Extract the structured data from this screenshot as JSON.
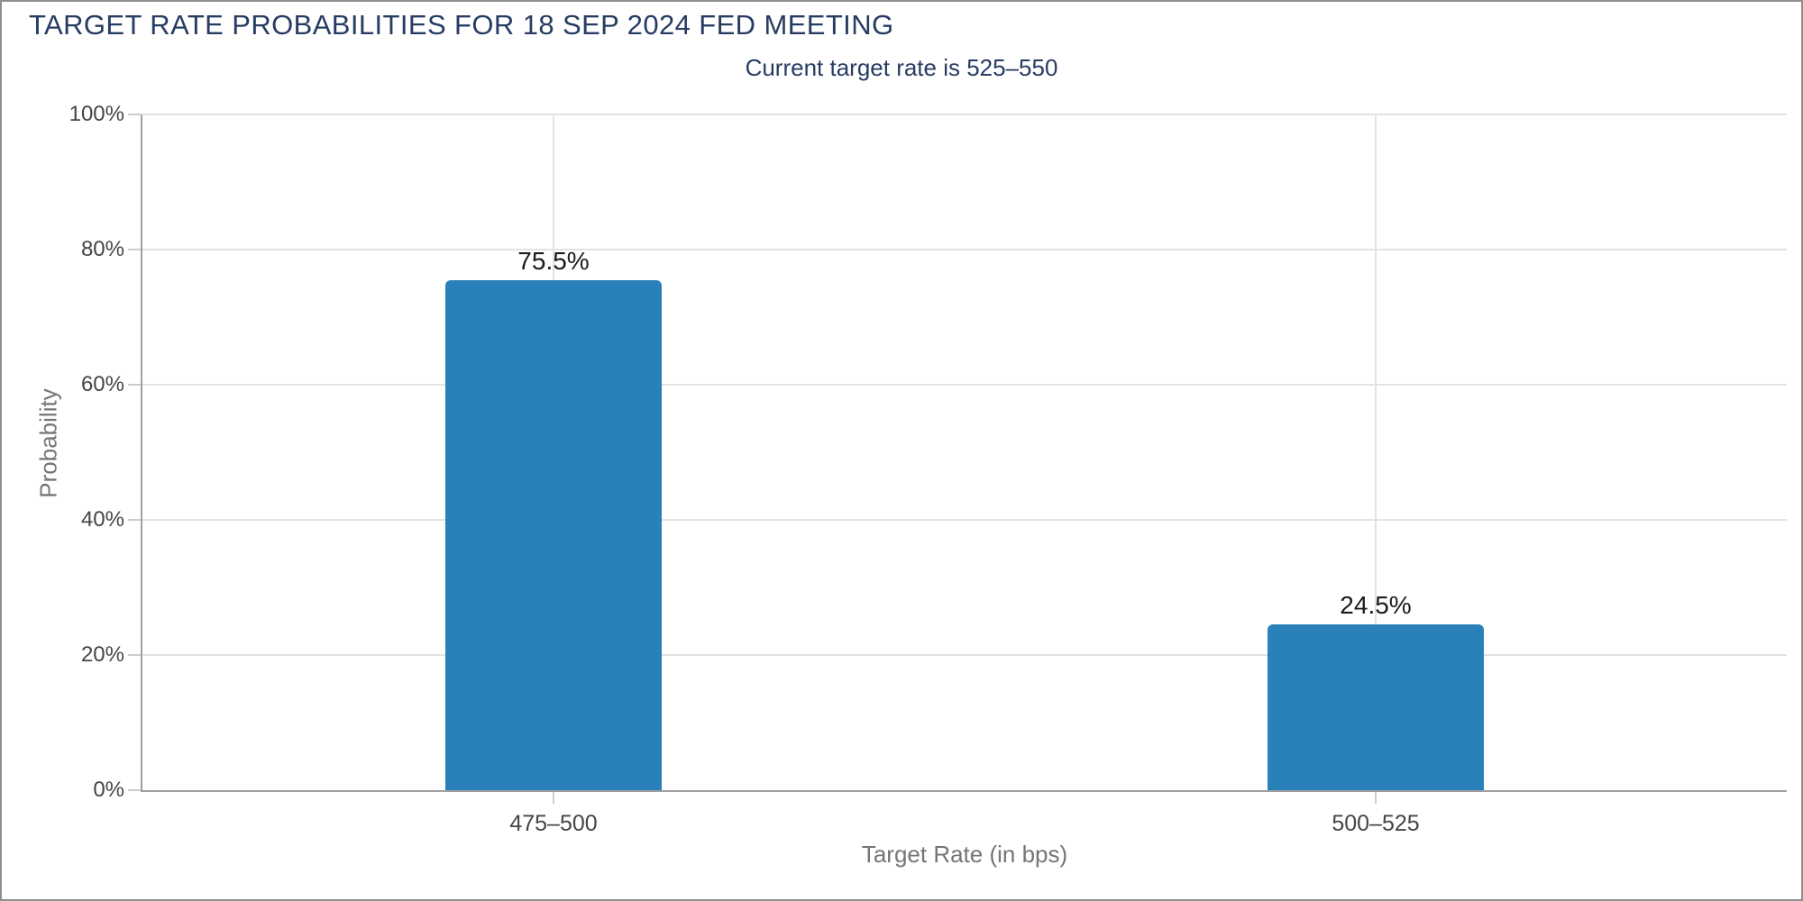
{
  "window": {
    "border_color": "#8e8e8e",
    "background": "#ffffff"
  },
  "chart_data": {
    "type": "bar",
    "title": "TARGET RATE PROBABILITIES FOR 18 SEP 2024 FED MEETING",
    "subtitle": "Current target rate is 525–550",
    "categories": [
      "475–500",
      "500–525"
    ],
    "values": [
      75.5,
      24.5
    ],
    "value_labels": [
      "75.5%",
      "24.5%"
    ],
    "xlabel": "Target Rate (in bps)",
    "ylabel": "Probability",
    "ylim": [
      0,
      100
    ],
    "yticks": [
      0,
      20,
      40,
      60,
      80,
      100
    ],
    "ytick_labels": [
      "0%",
      "20%",
      "40%",
      "60%",
      "80%",
      "100%"
    ],
    "grid": true,
    "legend_position": "none",
    "colors": {
      "bar": "#2a80b9",
      "title": "#273c62",
      "subtitle": "#273c62",
      "value_label": "#1b1b1b",
      "tick_label": "#454545",
      "axis_title": "#757575",
      "axis_line": "#a0a0a0",
      "gridline": "#e3e3e3",
      "tick_mark": "#cccccc"
    }
  }
}
